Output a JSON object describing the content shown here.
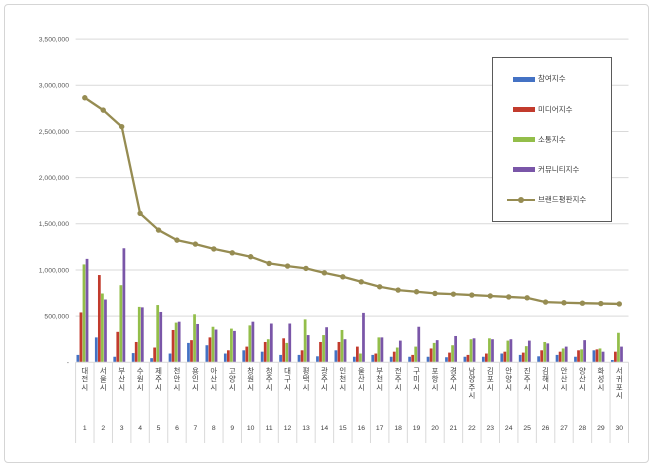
{
  "chart_data": {
    "type": "bar",
    "subtype": "grouped-bars-with-line-overlay",
    "title": "",
    "xlabel": "",
    "ylabel": "",
    "categories": [
      "대전시",
      "서울시",
      "부산시",
      "수원시",
      "제주시",
      "천안시",
      "용인시",
      "아산시",
      "고양시",
      "창원시",
      "청주시",
      "대구시",
      "평택시",
      "광주시",
      "인천시",
      "울산시",
      "부천시",
      "전주시",
      "구미시",
      "포항시",
      "경주시",
      "남양주시",
      "김포시",
      "안양시",
      "진주시",
      "김해시",
      "안산시",
      "양산시",
      "화성시",
      "서귀포시"
    ],
    "ranks": [
      "1",
      "2",
      "3",
      "4",
      "5",
      "6",
      "7",
      "8",
      "9",
      "10",
      "11",
      "12",
      "13",
      "14",
      "15",
      "16",
      "17",
      "18",
      "19",
      "20",
      "21",
      "22",
      "23",
      "24",
      "25",
      "26",
      "27",
      "28",
      "29",
      "30"
    ],
    "series": [
      {
        "name": "참여지수",
        "type": "bar",
        "color": "#4472c4",
        "values": [
          80000,
          270000,
          60000,
          100000,
          45000,
          95000,
          210000,
          185000,
          95000,
          130000,
          115000,
          80000,
          80000,
          65000,
          130000,
          60000,
          80000,
          60000,
          60000,
          60000,
          55000,
          60000,
          60000,
          95000,
          80000,
          65000,
          80000,
          60000,
          130000,
          25000
        ]
      },
      {
        "name": "미디어지수",
        "type": "bar",
        "color": "#c23b2d",
        "values": [
          540000,
          945000,
          330000,
          220000,
          160000,
          350000,
          240000,
          270000,
          130000,
          170000,
          220000,
          260000,
          130000,
          220000,
          220000,
          170000,
          95000,
          115000,
          80000,
          150000,
          105000,
          80000,
          95000,
          115000,
          105000,
          130000,
          115000,
          130000,
          140000,
          115000
        ]
      },
      {
        "name": "소통지수",
        "type": "bar",
        "color": "#93be4a",
        "values": [
          1060000,
          745000,
          835000,
          600000,
          620000,
          430000,
          520000,
          385000,
          365000,
          400000,
          250000,
          210000,
          465000,
          295000,
          350000,
          95000,
          270000,
          160000,
          170000,
          210000,
          185000,
          250000,
          260000,
          235000,
          175000,
          220000,
          150000,
          140000,
          150000,
          320000
        ]
      },
      {
        "name": "커뮤니티지수",
        "type": "bar",
        "color": "#7a56a8",
        "values": [
          1120000,
          680000,
          1235000,
          595000,
          545000,
          440000,
          415000,
          355000,
          340000,
          440000,
          420000,
          420000,
          295000,
          380000,
          250000,
          535000,
          270000,
          235000,
          385000,
          240000,
          285000,
          260000,
          250000,
          250000,
          235000,
          205000,
          170000,
          240000,
          115000,
          170000
        ]
      },
      {
        "name": "브랜드평판지수",
        "type": "line",
        "color": "#968c52",
        "values": [
          2865000,
          2731000,
          2552000,
          1613000,
          1432000,
          1323000,
          1280000,
          1228000,
          1186000,
          1143000,
          1071000,
          1042000,
          1017000,
          969000,
          926000,
          872000,
          818000,
          782000,
          764000,
          746000,
          738000,
          728000,
          718000,
          708000,
          698000,
          652000,
          645000,
          640000,
          636000,
          632000
        ]
      }
    ],
    "yaxis": {
      "min": 0,
      "max": 3500000,
      "step": 500000,
      "tick_labels": [
        "-",
        "500,000",
        "1,000,000",
        "1,500,000",
        "2,000,000",
        "2,500,000",
        "3,000,000",
        "3,500,000"
      ]
    },
    "grid": true,
    "legend_position": "upper-right-inside"
  },
  "colors": {
    "gridline": "#d9d9d9",
    "axis_text": "#595959",
    "category_text": "#3f3f3f",
    "frame_border": "#d5d5d5",
    "legend_border": "#5a5a5a"
  },
  "legend_names": [
    "participation-index",
    "media-index",
    "communication-index",
    "community-index",
    "brand-reputation-index"
  ]
}
